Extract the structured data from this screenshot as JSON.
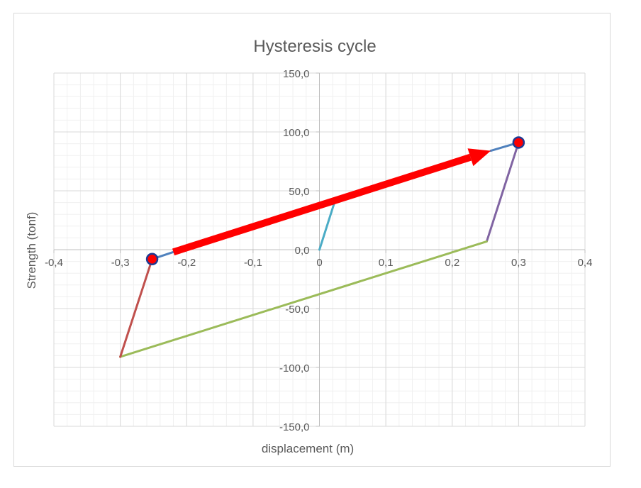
{
  "chart_data": {
    "type": "scatter",
    "title": "Hysteresis cycle",
    "xlabel": "displacement (m)",
    "ylabel": "Strength (tonf)",
    "xlim": [
      -0.4,
      0.4
    ],
    "ylim": [
      -150,
      150
    ],
    "x_major_step": 0.1,
    "y_major_step": 50,
    "x_tick_labels": [
      "-0,4",
      "-0,3",
      "-0,2",
      "-0,1",
      "0",
      "0,1",
      "0,2",
      "0,3",
      "0,4"
    ],
    "y_tick_labels": [
      "150,0",
      "100,0",
      "50,0",
      "0,0",
      "-50,0",
      "-100,0",
      "-150,0"
    ],
    "grid": "major-and-minor",
    "legend": "none",
    "series": [
      {
        "color": "#4bacc6",
        "x": [
          0,
          0.022
        ],
        "y": [
          0,
          39
        ]
      },
      {
        "color": "#4f81bd",
        "x": [
          0.258,
          0.3
        ],
        "y": [
          84,
          91
        ]
      },
      {
        "color": "#8064a2",
        "x": [
          0.3,
          0.252
        ],
        "y": [
          91,
          7
        ]
      },
      {
        "color": "#9bbb59",
        "x": [
          0.252,
          -0.3
        ],
        "y": [
          7,
          -91
        ]
      },
      {
        "color": "#c0504d",
        "x": [
          -0.3,
          -0.252
        ],
        "y": [
          -91,
          -8
        ]
      },
      {
        "color": "#4f81bd",
        "x": [
          -0.252,
          -0.22
        ],
        "y": [
          -8,
          -2
        ]
      }
    ],
    "markers": [
      {
        "x": -0.252,
        "y": -8,
        "fill": "#ff0000",
        "stroke": "#1f3a93"
      },
      {
        "x": 0.3,
        "y": 91,
        "fill": "#ff0000",
        "stroke": "#1f3a93"
      }
    ],
    "annotations": [
      {
        "type": "arrow",
        "color": "#ff0000",
        "from": [
          -0.22,
          -2
        ],
        "to": [
          0.258,
          84
        ]
      }
    ]
  }
}
